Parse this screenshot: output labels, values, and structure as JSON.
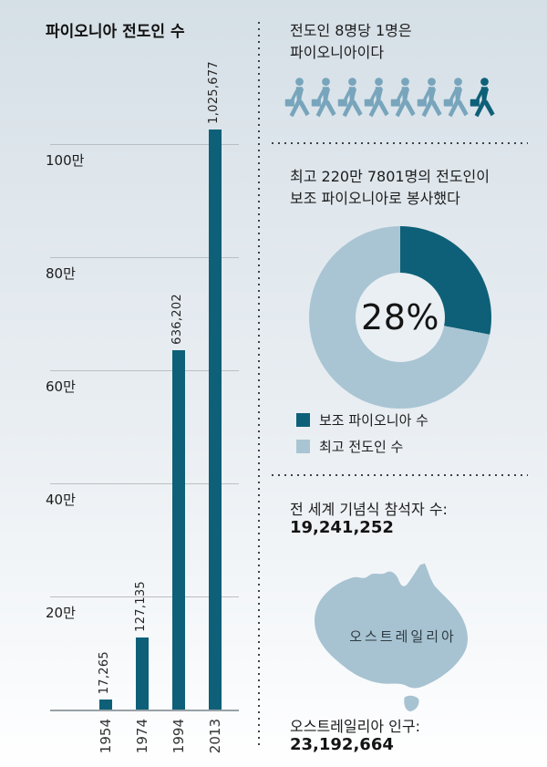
{
  "title": "파이오니아 전도인 수",
  "colors": {
    "dark_teal": "#0e6078",
    "light_steel": "#78a5bc",
    "donut_light": "#a9c5d3",
    "map_fill": "#a7c3d2",
    "gridline": "#b9c0c4",
    "axis": "#98a1a7"
  },
  "chart_data": [
    {
      "type": "bar",
      "title": "파이오니아 전도인 수",
      "categories": [
        "1954",
        "1974",
        "1994",
        "2013"
      ],
      "values": [
        17265,
        127135,
        636202,
        1025677
      ],
      "value_labels": [
        "17,265",
        "127,135",
        "636,202",
        "1,025,677"
      ],
      "xlabel": "",
      "ylabel": "",
      "ylim": [
        0,
        1150000
      ],
      "grid": true,
      "y_ticks": [
        {
          "label": "20만",
          "value": 200000
        },
        {
          "label": "40만",
          "value": 400000
        },
        {
          "label": "60만",
          "value": 600000
        },
        {
          "label": "80만",
          "value": 800000
        },
        {
          "label": "100만",
          "value": 1000000
        }
      ],
      "bar_color": "#0e6078"
    },
    {
      "type": "pie",
      "subtype": "donut",
      "center_label": "28%",
      "slices": [
        {
          "name": "보조 파이오니아 수",
          "percent": 28,
          "color": "#0e6078"
        },
        {
          "name": "최고 전도인 수",
          "percent": 72,
          "color": "#a9c5d3"
        }
      ],
      "legend_position": "bottom-left"
    }
  ],
  "ratio_section": {
    "line1": "전도인 8명당 1명은",
    "line2": "파이오니아이다",
    "total_icons": 8,
    "highlighted_icons": 1,
    "icon": "walking-person-with-briefcase"
  },
  "aux_section": {
    "line1": "최고 220만 7801명의 전도인이",
    "line2": "보조 파이오니아로 봉사했다"
  },
  "legend": [
    {
      "label": "보조 파이오니아 수",
      "color": "#0e6078"
    },
    {
      "label": "최고 전도인 수",
      "color": "#a9c5d3"
    }
  ],
  "memorial_section": {
    "label": "전 세계 기념식 참석자 수:",
    "value": "19,241,252"
  },
  "australia_section": {
    "map_label": "오스트레일리아",
    "population_label": "오스트레일리아 인구:",
    "population_value": "23,192,664"
  }
}
